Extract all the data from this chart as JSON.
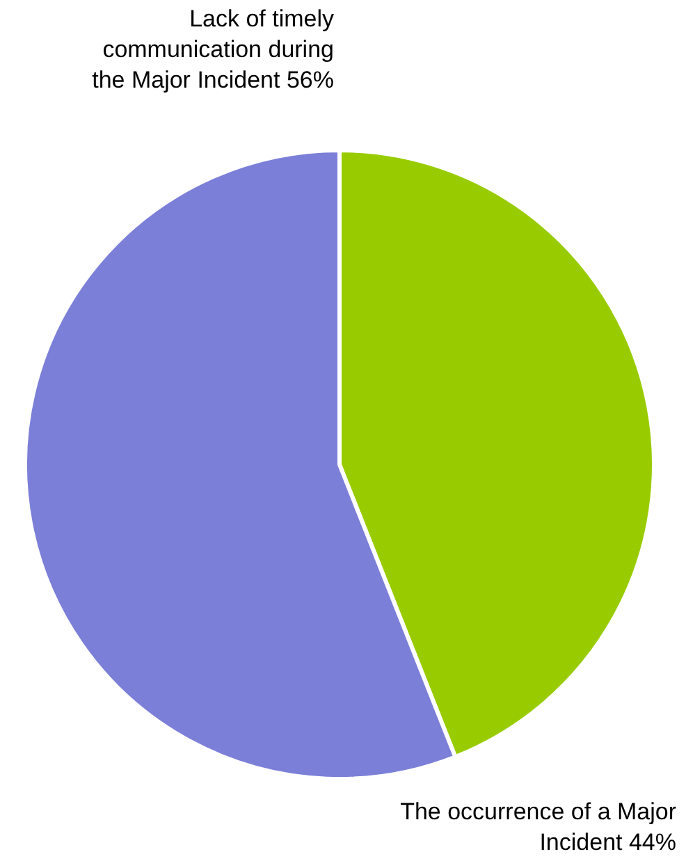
{
  "chart_data": {
    "type": "pie",
    "categories": [
      "The occurrence of a Major Incident",
      "Lack of timely communication during the Major Incident"
    ],
    "values": [
      44,
      56
    ],
    "colors": [
      "#99cc00",
      "#7b7fd8"
    ],
    "value_labels": [
      "44%",
      "56%"
    ]
  }
}
